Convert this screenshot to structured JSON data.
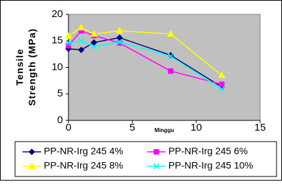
{
  "chart_data": {
    "type": "line",
    "ylabel": [
      "Tensile",
      "Strength (MPa)"
    ],
    "xlabel": "Minggu",
    "xlim": [
      0,
      15
    ],
    "xticks": [
      0,
      5,
      10,
      15
    ],
    "ylim": [
      0,
      20
    ],
    "yticks": [
      0,
      5,
      10,
      15,
      20
    ],
    "series": [
      {
        "name": "PP-NR-Irg 245 4%",
        "color": "#000080",
        "marker": "diamond",
        "x": [
          0,
          1,
          2,
          4,
          8,
          12
        ],
        "values": [
          13.5,
          13.3,
          14.7,
          15.6,
          12.3,
          6.3
        ]
      },
      {
        "name": "PP-NR-Irg 245 6%",
        "color": "#ff00ff",
        "marker": "square",
        "x": [
          0,
          1,
          2,
          4,
          8,
          12
        ],
        "values": [
          14.1,
          16.9,
          16.0,
          14.6,
          9.3,
          6.8
        ]
      },
      {
        "name": "PP-NR-Irg 245 8%",
        "color": "#ffff00",
        "marker": "triangle",
        "x": [
          0,
          1,
          2,
          4,
          8,
          12
        ],
        "values": [
          15.9,
          17.5,
          16.3,
          16.9,
          16.3,
          8.5
        ]
      },
      {
        "name": "PP-NR-Irg 245 10%",
        "color": "#00ffff",
        "marker": "x",
        "x": [
          0,
          1,
          2,
          4,
          8,
          12
        ],
        "values": [
          14.6,
          15.0,
          13.9,
          14.8,
          12.1,
          5.9
        ]
      }
    ]
  }
}
